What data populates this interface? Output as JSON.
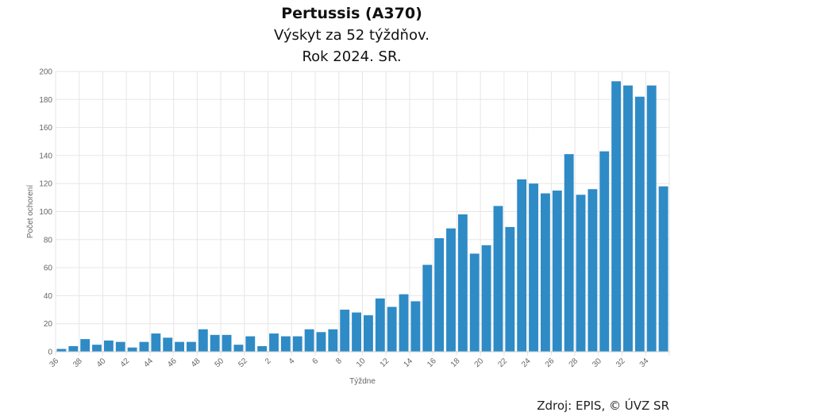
{
  "chart_data": {
    "type": "bar",
    "title": "Pertussis (A370)",
    "subtitle": [
      "Výskyt za 52 týždňov.",
      "Rok 2024. SR."
    ],
    "xlabel": "Týždne",
    "ylabel": "Počet ochorení",
    "ylim": [
      0,
      200
    ],
    "yticks": [
      0,
      20,
      40,
      60,
      80,
      100,
      120,
      140,
      160,
      180,
      200
    ],
    "grid": true,
    "color": "#2e8bc6",
    "categories": [
      "36",
      "37",
      "38",
      "39",
      "40",
      "41",
      "42",
      "43",
      "44",
      "45",
      "46",
      "47",
      "48",
      "49",
      "50",
      "51",
      "52",
      "1",
      "2",
      "3",
      "4",
      "5",
      "6",
      "7",
      "8",
      "9",
      "10",
      "11",
      "12",
      "13",
      "14",
      "15",
      "16",
      "17",
      "18",
      "19",
      "20",
      "21",
      "22",
      "23",
      "24",
      "25",
      "26",
      "27",
      "28",
      "29",
      "30",
      "31",
      "32",
      "33",
      "34",
      "35"
    ],
    "values": [
      2,
      4,
      9,
      5,
      8,
      7,
      3,
      7,
      13,
      10,
      7,
      7,
      16,
      12,
      12,
      5,
      11,
      4,
      13,
      11,
      11,
      16,
      14,
      16,
      30,
      28,
      26,
      38,
      32,
      41,
      36,
      62,
      81,
      88,
      98,
      70,
      76,
      104,
      89,
      123,
      120,
      113,
      115,
      141,
      112,
      116,
      143,
      193,
      190,
      182,
      190,
      118
    ]
  },
  "source": "Zdroj: EPIS, © ÚVZ SR"
}
